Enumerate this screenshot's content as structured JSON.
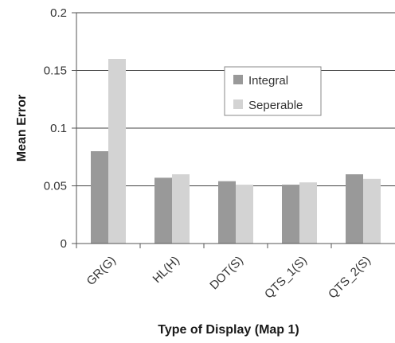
{
  "chart_data": {
    "type": "bar",
    "xlabel": "Type of Display (Map 1)",
    "ylabel": "Mean Error",
    "categories": [
      "GR(G)",
      "HL(H)",
      "DOT(S)",
      "QTS_1(S)",
      "QTS_2(S)"
    ],
    "series": [
      {
        "name": "Integral",
        "color": "#999999",
        "values": [
          0.08,
          0.057,
          0.054,
          0.051,
          0.06
        ]
      },
      {
        "name": "Seperable",
        "color": "#d3d3d3",
        "values": [
          0.16,
          0.06,
          0.051,
          0.053,
          0.056
        ]
      }
    ],
    "ylim": [
      0,
      0.2
    ],
    "yticks": [
      0,
      0.05,
      0.1,
      0.15,
      0.2
    ],
    "ytick_labels": [
      "0",
      "0.05",
      "0.1",
      "0.15",
      "0.2"
    ],
    "grid": true,
    "legend_position": "top-right"
  }
}
